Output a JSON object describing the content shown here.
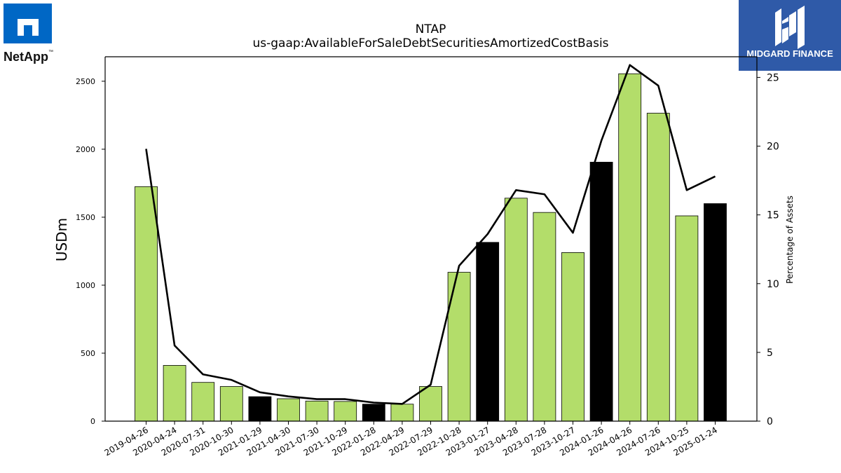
{
  "brand": {
    "left_logo_text": "NetApp",
    "left_logo_tm": "™",
    "right_logo_text": "MIDGARD FINANCE"
  },
  "colors": {
    "bar_default": "#b3dd6a",
    "bar_highlight": "#000000",
    "line": "#000000",
    "netapp_blue": "#0067c5",
    "midgard_blue": "#2f5aa8"
  },
  "chart_data": {
    "type": "bar",
    "title": "NTAP",
    "subtitle": "us-gaap:AvailableForSaleDebtSecuritiesAmortizedCostBasis",
    "ylabel": "USDm",
    "y2label": "Percentage of Assets",
    "ylim": [
      0,
      2680
    ],
    "y2lim": [
      0,
      26.5
    ],
    "yticks": [
      0,
      500,
      1000,
      1500,
      2000,
      2500
    ],
    "y2ticks": [
      0,
      5,
      10,
      15,
      20,
      25
    ],
    "categories": [
      "2019-04-26",
      "2020-04-24",
      "2020-07-31",
      "2020-10-30",
      "2021-01-29",
      "2021-04-30",
      "2021-07-30",
      "2021-10-29",
      "2022-01-28",
      "2022-04-29",
      "2022-07-29",
      "2022-10-28",
      "2023-01-27",
      "2023-04-28",
      "2023-07-28",
      "2023-10-27",
      "2024-01-26",
      "2024-04-26",
      "2024-07-26",
      "2024-10-25",
      "2025-01-24"
    ],
    "series": [
      {
        "type": "bar",
        "axis": "left",
        "values": [
          1725,
          410,
          285,
          255,
          180,
          165,
          148,
          145,
          125,
          125,
          255,
          1095,
          1315,
          1640,
          1535,
          1240,
          1905,
          2555,
          2265,
          1510,
          1600
        ],
        "highlight": [
          false,
          false,
          false,
          false,
          true,
          false,
          false,
          false,
          true,
          false,
          false,
          false,
          true,
          false,
          false,
          false,
          true,
          false,
          false,
          false,
          true
        ]
      },
      {
        "type": "line",
        "axis": "right",
        "values": [
          19.8,
          5.5,
          3.4,
          3.0,
          2.1,
          1.8,
          1.6,
          1.6,
          1.35,
          1.25,
          2.65,
          11.3,
          13.6,
          16.8,
          16.5,
          13.7,
          20.4,
          25.9,
          24.4,
          16.8,
          17.8
        ]
      }
    ],
    "grid": false,
    "legend": "none"
  }
}
